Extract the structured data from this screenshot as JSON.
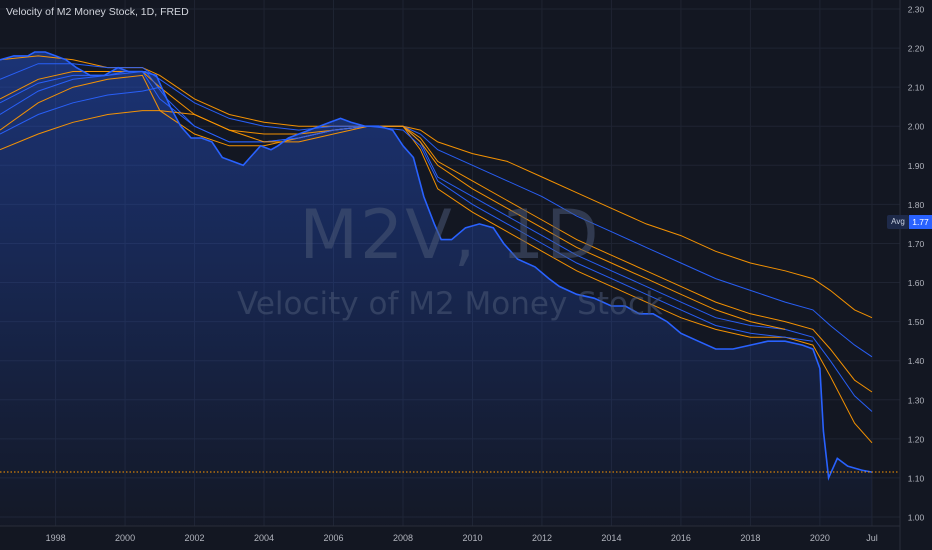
{
  "title": "Velocity of M2 Money Stock, 1D, FRED",
  "watermark": {
    "symbol": "M2V, 1D",
    "name": "Velocity of M2 Money Stock"
  },
  "avg_label": "Avg",
  "avg_value": "1.77",
  "colors": {
    "background": "#131722",
    "grid": "#1f2432",
    "blue": "#2962ff",
    "orange": "#ff9800",
    "axis_text": "#b2b5be",
    "avg_line": "#ff9800"
  },
  "chart_data": {
    "type": "line",
    "title": "Velocity of M2 Money Stock, 1D, FRED",
    "xlabel": "",
    "ylabel": "",
    "x_unit": "year",
    "xlim": [
      1996.4,
      2021.5
    ],
    "ylim": [
      1.0,
      2.3
    ],
    "x_ticks": [
      {
        "x": 1998,
        "label": "1998"
      },
      {
        "x": 2000,
        "label": "2000"
      },
      {
        "x": 2002,
        "label": "2002"
      },
      {
        "x": 2004,
        "label": "2004"
      },
      {
        "x": 2006,
        "label": "2006"
      },
      {
        "x": 2008,
        "label": "2008"
      },
      {
        "x": 2010,
        "label": "2010"
      },
      {
        "x": 2012,
        "label": "2012"
      },
      {
        "x": 2014,
        "label": "2014"
      },
      {
        "x": 2016,
        "label": "2016"
      },
      {
        "x": 2018,
        "label": "2018"
      },
      {
        "x": 2020,
        "label": "2020"
      },
      {
        "x": 2021.5,
        "label": "Jul"
      }
    ],
    "y_ticks": [
      {
        "y": 1.0,
        "label": "1.00"
      },
      {
        "y": 1.1,
        "label": "1.10"
      },
      {
        "y": 1.2,
        "label": "1.20"
      },
      {
        "y": 1.3,
        "label": "1.30"
      },
      {
        "y": 1.4,
        "label": "1.40"
      },
      {
        "y": 1.5,
        "label": "1.50"
      },
      {
        "y": 1.6,
        "label": "1.60"
      },
      {
        "y": 1.7,
        "label": "1.70"
      },
      {
        "y": 1.8,
        "label": "1.80"
      },
      {
        "y": 1.9,
        "label": "1.90"
      },
      {
        "y": 2.0,
        "label": "2.00"
      },
      {
        "y": 2.1,
        "label": "2.10"
      },
      {
        "y": 2.2,
        "label": "2.20"
      },
      {
        "y": 2.3,
        "label": "2.30"
      }
    ],
    "grid": true,
    "horizontal_lines": [
      {
        "y": 1.115,
        "style": "dotted",
        "color": "#ff9800"
      }
    ],
    "area_series": {
      "color": "#2962ff",
      "points": [
        [
          1996.4,
          2.17
        ],
        [
          1996.8,
          2.18
        ],
        [
          1997.2,
          2.18
        ],
        [
          1997.4,
          2.19
        ],
        [
          1997.7,
          2.19
        ],
        [
          1998.0,
          2.18
        ],
        [
          1998.3,
          2.17
        ],
        [
          1998.6,
          2.15
        ],
        [
          1999.0,
          2.13
        ],
        [
          1999.4,
          2.13
        ],
        [
          1999.8,
          2.15
        ],
        [
          2000.1,
          2.14
        ],
        [
          2000.5,
          2.14
        ],
        [
          2000.9,
          2.13
        ],
        [
          2001.1,
          2.09
        ],
        [
          2001.3,
          2.05
        ],
        [
          2001.6,
          2.0
        ],
        [
          2001.9,
          1.97
        ],
        [
          2002.2,
          1.97
        ],
        [
          2002.5,
          1.96
        ],
        [
          2002.8,
          1.92
        ],
        [
          2003.1,
          1.91
        ],
        [
          2003.4,
          1.9
        ],
        [
          2003.6,
          1.92
        ],
        [
          2003.9,
          1.95
        ],
        [
          2004.2,
          1.94
        ],
        [
          2004.4,
          1.95
        ],
        [
          2004.7,
          1.97
        ],
        [
          2005.0,
          1.98
        ],
        [
          2005.3,
          1.99
        ],
        [
          2005.6,
          2.0
        ],
        [
          2005.9,
          2.01
        ],
        [
          2006.2,
          2.02
        ],
        [
          2006.5,
          2.01
        ],
        [
          2006.9,
          2.0
        ],
        [
          2007.3,
          2.0
        ],
        [
          2007.7,
          1.99
        ],
        [
          2008.0,
          1.95
        ],
        [
          2008.3,
          1.92
        ],
        [
          2008.6,
          1.82
        ],
        [
          2008.9,
          1.75
        ],
        [
          2009.1,
          1.71
        ],
        [
          2009.4,
          1.71
        ],
        [
          2009.8,
          1.74
        ],
        [
          2010.2,
          1.75
        ],
        [
          2010.6,
          1.74
        ],
        [
          2010.9,
          1.7
        ],
        [
          2011.3,
          1.66
        ],
        [
          2011.8,
          1.64
        ],
        [
          2012.2,
          1.61
        ],
        [
          2012.5,
          1.59
        ],
        [
          2013.0,
          1.57
        ],
        [
          2013.5,
          1.56
        ],
        [
          2014.0,
          1.54
        ],
        [
          2014.4,
          1.54
        ],
        [
          2014.8,
          1.52
        ],
        [
          2015.2,
          1.52
        ],
        [
          2015.6,
          1.5
        ],
        [
          2016.0,
          1.47
        ],
        [
          2016.5,
          1.45
        ],
        [
          2017.0,
          1.43
        ],
        [
          2017.5,
          1.43
        ],
        [
          2018.0,
          1.44
        ],
        [
          2018.5,
          1.45
        ],
        [
          2019.0,
          1.45
        ],
        [
          2019.5,
          1.44
        ],
        [
          2019.8,
          1.43
        ],
        [
          2020.0,
          1.38
        ],
        [
          2020.1,
          1.22
        ],
        [
          2020.25,
          1.1
        ],
        [
          2020.5,
          1.15
        ],
        [
          2020.8,
          1.13
        ],
        [
          2021.2,
          1.12
        ],
        [
          2021.5,
          1.115
        ]
      ]
    },
    "series": [
      {
        "color": "#ff9800",
        "values": [
          [
            1996.4,
            2.17
          ],
          [
            1997.5,
            2.18
          ],
          [
            1998.5,
            2.17
          ],
          [
            1999.5,
            2.15
          ],
          [
            2000.5,
            2.15
          ],
          [
            2001.0,
            2.13
          ],
          [
            2002.0,
            2.07
          ],
          [
            2003.0,
            2.03
          ],
          [
            2004.0,
            2.01
          ],
          [
            2005.0,
            2.0
          ],
          [
            2006.0,
            2.0
          ],
          [
            2007.0,
            2.0
          ],
          [
            2008.0,
            2.0
          ],
          [
            2008.5,
            1.99
          ],
          [
            2009.0,
            1.96
          ],
          [
            2010.0,
            1.93
          ],
          [
            2011.0,
            1.91
          ],
          [
            2012.0,
            1.87
          ],
          [
            2013.0,
            1.83
          ],
          [
            2014.0,
            1.79
          ],
          [
            2015.0,
            1.75
          ],
          [
            2016.0,
            1.72
          ],
          [
            2017.0,
            1.68
          ],
          [
            2018.0,
            1.65
          ],
          [
            2019.0,
            1.63
          ],
          [
            2019.8,
            1.61
          ],
          [
            2020.3,
            1.58
          ],
          [
            2021.0,
            1.53
          ],
          [
            2021.5,
            1.51
          ]
        ]
      },
      {
        "color": "#2962ff",
        "values": [
          [
            1996.4,
            2.12
          ],
          [
            1997.5,
            2.16
          ],
          [
            1998.5,
            2.16
          ],
          [
            1999.5,
            2.15
          ],
          [
            2000.5,
            2.15
          ],
          [
            2001.0,
            2.12
          ],
          [
            2002.0,
            2.06
          ],
          [
            2003.0,
            2.02
          ],
          [
            2004.0,
            2.0
          ],
          [
            2005.0,
            1.99
          ],
          [
            2006.0,
            2.0
          ],
          [
            2007.0,
            2.0
          ],
          [
            2008.0,
            2.0
          ],
          [
            2008.5,
            1.98
          ],
          [
            2009.0,
            1.94
          ],
          [
            2010.0,
            1.9
          ],
          [
            2011.0,
            1.86
          ],
          [
            2012.0,
            1.82
          ],
          [
            2013.0,
            1.77
          ],
          [
            2014.0,
            1.73
          ],
          [
            2015.0,
            1.69
          ],
          [
            2016.0,
            1.65
          ],
          [
            2017.0,
            1.61
          ],
          [
            2018.0,
            1.58
          ],
          [
            2019.0,
            1.55
          ],
          [
            2019.8,
            1.53
          ],
          [
            2020.3,
            1.49
          ],
          [
            2021.0,
            1.44
          ],
          [
            2021.5,
            1.41
          ]
        ]
      },
      {
        "color": "#ff9800",
        "values": [
          [
            1996.4,
            2.07
          ],
          [
            1997.5,
            2.12
          ],
          [
            1998.5,
            2.14
          ],
          [
            1999.5,
            2.14
          ],
          [
            2000.5,
            2.14
          ],
          [
            2001.0,
            2.1
          ],
          [
            2002.0,
            2.03
          ],
          [
            2003.0,
            1.99
          ],
          [
            2004.0,
            1.98
          ],
          [
            2005.0,
            1.98
          ],
          [
            2006.0,
            1.99
          ],
          [
            2007.0,
            2.0
          ],
          [
            2008.0,
            2.0
          ],
          [
            2008.5,
            1.97
          ],
          [
            2009.0,
            1.91
          ],
          [
            2010.0,
            1.86
          ],
          [
            2011.0,
            1.81
          ],
          [
            2012.0,
            1.76
          ],
          [
            2013.0,
            1.71
          ],
          [
            2014.0,
            1.67
          ],
          [
            2015.0,
            1.63
          ],
          [
            2016.0,
            1.59
          ],
          [
            2017.0,
            1.55
          ],
          [
            2018.0,
            1.52
          ],
          [
            2019.0,
            1.5
          ],
          [
            2019.8,
            1.48
          ],
          [
            2020.3,
            1.43
          ],
          [
            2021.0,
            1.35
          ],
          [
            2021.5,
            1.32
          ]
        ]
      },
      {
        "color": "#2962ff",
        "values": [
          [
            1996.4,
            2.03
          ],
          [
            1997.5,
            2.09
          ],
          [
            1998.5,
            2.12
          ],
          [
            1999.5,
            2.13
          ],
          [
            2000.5,
            2.14
          ],
          [
            2001.0,
            2.07
          ],
          [
            2002.0,
            2.0
          ],
          [
            2003.0,
            1.96
          ],
          [
            2004.0,
            1.96
          ],
          [
            2005.0,
            1.97
          ],
          [
            2006.0,
            1.99
          ],
          [
            2007.0,
            2.0
          ],
          [
            2008.0,
            2.0
          ],
          [
            2008.5,
            1.96
          ],
          [
            2009.0,
            1.87
          ],
          [
            2010.0,
            1.82
          ],
          [
            2011.0,
            1.77
          ],
          [
            2012.0,
            1.72
          ],
          [
            2013.0,
            1.67
          ],
          [
            2014.0,
            1.63
          ],
          [
            2015.0,
            1.59
          ],
          [
            2016.0,
            1.55
          ],
          [
            2017.0,
            1.51
          ],
          [
            2018.0,
            1.49
          ],
          [
            2019.0,
            1.48
          ],
          [
            2019.8,
            1.46
          ],
          [
            2020.3,
            1.4
          ],
          [
            2021.0,
            1.31
          ],
          [
            2021.5,
            1.27
          ]
        ]
      },
      {
        "color": "#ff9800",
        "values": [
          [
            1996.4,
            1.99
          ],
          [
            1997.5,
            2.06
          ],
          [
            1998.5,
            2.1
          ],
          [
            1999.5,
            2.12
          ],
          [
            2000.5,
            2.13
          ],
          [
            2001.0,
            2.04
          ],
          [
            2002.0,
            1.98
          ],
          [
            2003.0,
            1.95
          ],
          [
            2004.0,
            1.95
          ],
          [
            2005.0,
            1.97
          ],
          [
            2006.0,
            1.99
          ],
          [
            2007.0,
            2.0
          ],
          [
            2008.0,
            2.0
          ],
          [
            2008.5,
            1.94
          ],
          [
            2009.0,
            1.84
          ],
          [
            2010.0,
            1.78
          ],
          [
            2011.0,
            1.73
          ],
          [
            2012.0,
            1.68
          ],
          [
            2013.0,
            1.63
          ],
          [
            2014.0,
            1.59
          ],
          [
            2015.0,
            1.55
          ],
          [
            2016.0,
            1.51
          ],
          [
            2017.0,
            1.48
          ],
          [
            2018.0,
            1.46
          ],
          [
            2019.0,
            1.46
          ],
          [
            2019.8,
            1.44
          ],
          [
            2020.3,
            1.36
          ],
          [
            2021.0,
            1.24
          ],
          [
            2021.5,
            1.19
          ]
        ]
      },
      {
        "color": "#2962ff",
        "values": [
          [
            1996.4,
            2.06
          ],
          [
            1997.5,
            2.11
          ],
          [
            1998.5,
            2.13
          ],
          [
            1999.5,
            2.13
          ],
          [
            2000.0,
            2.14
          ],
          [
            2000.6,
            2.14
          ],
          [
            2001.2,
            2.07
          ],
          [
            2002.0,
            2.0
          ],
          [
            2003.0,
            1.96
          ],
          [
            2004.0,
            1.96
          ],
          [
            2005.0,
            1.97
          ],
          [
            2006.0,
            1.99
          ],
          [
            2007.0,
            2.0
          ],
          [
            2008.0,
            1.99
          ],
          [
            2008.5,
            1.95
          ],
          [
            2009.0,
            1.86
          ],
          [
            2010.0,
            1.8
          ],
          [
            2011.0,
            1.75
          ],
          [
            2012.0,
            1.7
          ],
          [
            2013.0,
            1.65
          ],
          [
            2014.0,
            1.61
          ],
          [
            2015.0,
            1.57
          ],
          [
            2016.0,
            1.53
          ],
          [
            2017.0,
            1.49
          ],
          [
            2018.0,
            1.47
          ],
          [
            2019.0,
            1.46
          ],
          [
            2019.8,
            1.45
          ]
        ]
      },
      {
        "color": "#ff9800",
        "values": [
          [
            1996.4,
            1.94
          ],
          [
            1997.5,
            1.98
          ],
          [
            1998.5,
            2.01
          ],
          [
            1999.5,
            2.03
          ],
          [
            2000.5,
            2.04
          ],
          [
            2001.0,
            2.04
          ],
          [
            2002.0,
            2.03
          ],
          [
            2003.0,
            1.99
          ],
          [
            2004.0,
            1.96
          ],
          [
            2005.0,
            1.96
          ],
          [
            2006.0,
            1.98
          ],
          [
            2007.0,
            2.0
          ],
          [
            2008.0,
            2.0
          ],
          [
            2008.5,
            1.96
          ],
          [
            2009.0,
            1.9
          ],
          [
            2010.0,
            1.84
          ],
          [
            2011.0,
            1.79
          ],
          [
            2012.0,
            1.74
          ],
          [
            2013.0,
            1.69
          ],
          [
            2014.0,
            1.65
          ],
          [
            2015.0,
            1.61
          ],
          [
            2016.0,
            1.57
          ],
          [
            2017.0,
            1.53
          ],
          [
            2018.0,
            1.5
          ],
          [
            2019.0,
            1.48
          ]
        ]
      },
      {
        "color": "#2962ff",
        "values": [
          [
            1996.4,
            1.98
          ],
          [
            1997.5,
            2.03
          ],
          [
            1998.5,
            2.06
          ],
          [
            1999.5,
            2.08
          ],
          [
            2000.5,
            2.09
          ],
          [
            2001.0,
            2.1
          ]
        ]
      }
    ]
  }
}
